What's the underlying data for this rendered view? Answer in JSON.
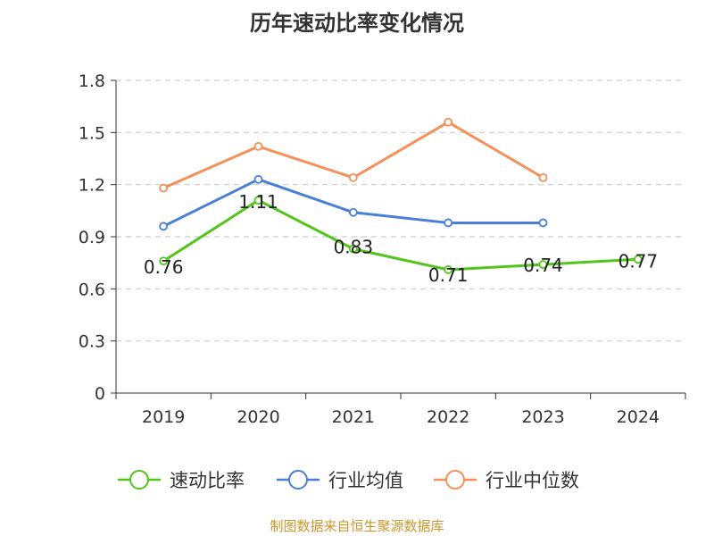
{
  "chart_data": {
    "type": "line",
    "title": "历年速动比率变化情况",
    "categories": [
      "2019",
      "2020",
      "2021",
      "2022",
      "2023",
      "2024"
    ],
    "ylim": [
      0,
      1.8
    ],
    "yticks": [
      "0",
      "0.3",
      "0.6",
      "0.9",
      "1.2",
      "1.5",
      "1.8"
    ],
    "grid": true,
    "legend_position": "bottom",
    "series": [
      {
        "name": "速动比率",
        "color": "#52c41a",
        "values": [
          0.76,
          1.11,
          0.83,
          0.71,
          0.74,
          0.77
        ],
        "labels": [
          "0.76",
          "1.11",
          "0.83",
          "0.71",
          "0.74",
          "0.77"
        ]
      },
      {
        "name": "行业均值",
        "color": "#4a7fd6",
        "values": [
          0.96,
          1.23,
          1.04,
          0.98,
          0.98,
          null
        ]
      },
      {
        "name": "行业中位数",
        "color": "#f5905a",
        "values": [
          1.18,
          1.42,
          1.24,
          1.56,
          1.24,
          null
        ]
      }
    ]
  },
  "source": "制图数据来自恒生聚源数据库"
}
